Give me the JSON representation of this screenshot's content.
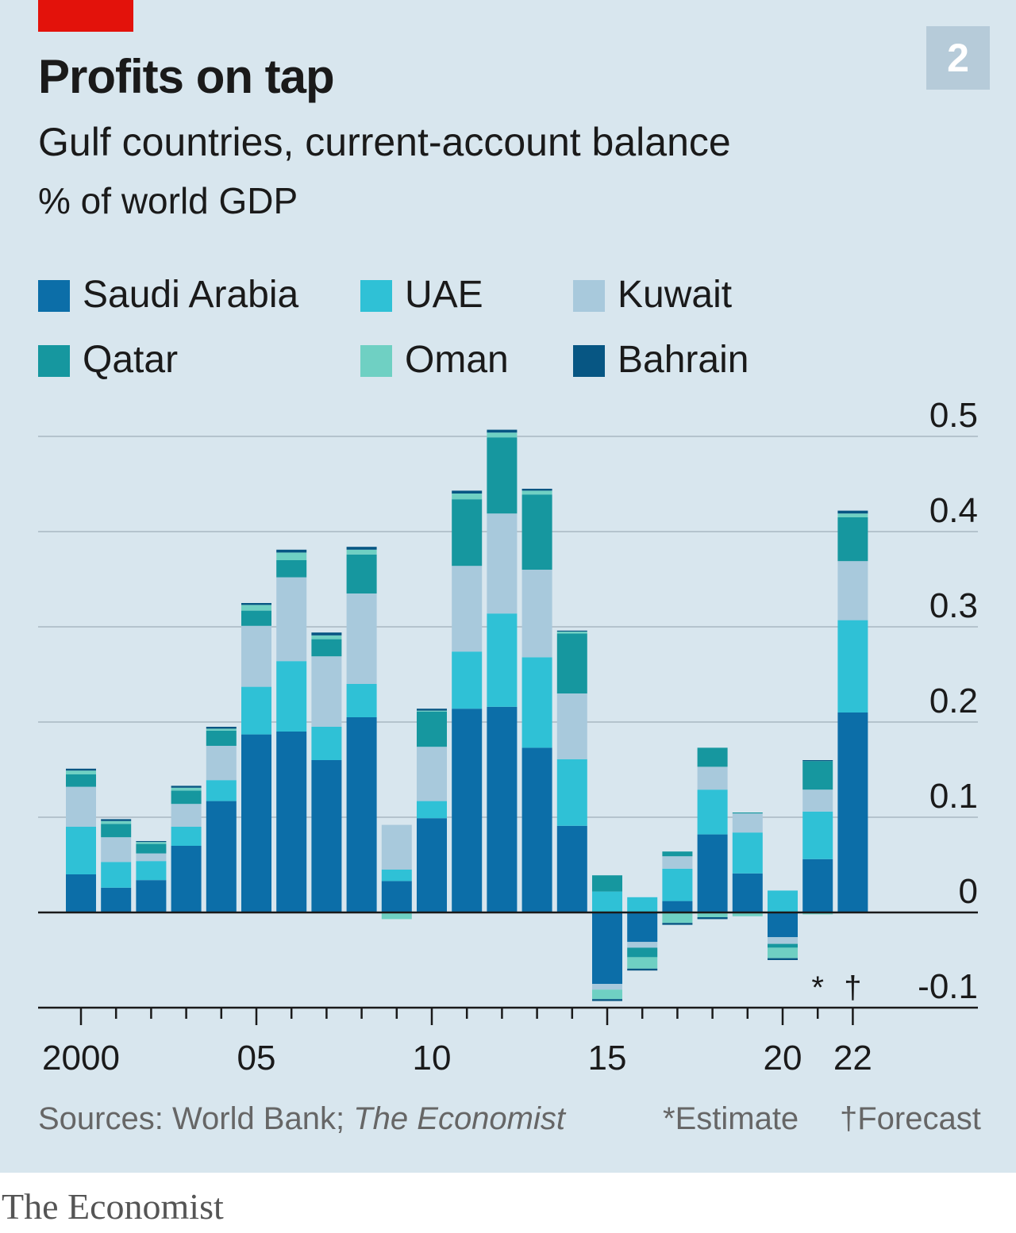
{
  "chart_number": "2",
  "title": "Profits on tap",
  "subtitle": "Gulf countries, current-account balance",
  "unit_label": "% of world GDP",
  "sources": {
    "prefix": "Sources: World Bank; ",
    "italic": "The Economist"
  },
  "notes": {
    "estimate": "*Estimate",
    "forecast": "†Forecast"
  },
  "publisher": "The Economist",
  "colors": {
    "background": "#d8e6ee",
    "accent_red": "#e3120b",
    "gridline": "#b4c3cd",
    "axis": "#1a1a1a"
  },
  "chart_data": {
    "type": "bar",
    "stacked": true,
    "x": [
      2000,
      2001,
      2002,
      2003,
      2004,
      2005,
      2006,
      2007,
      2008,
      2009,
      2010,
      2011,
      2012,
      2013,
      2014,
      2015,
      2016,
      2017,
      2018,
      2019,
      2020,
      2021,
      2022
    ],
    "xtick_values": [
      2000,
      2005,
      2010,
      2015,
      2020,
      2022
    ],
    "xtick_labels": [
      "2000",
      "05",
      "10",
      "15",
      "20",
      "22"
    ],
    "ylim": [
      -0.1,
      0.5
    ],
    "yticks": [
      0.5,
      0.4,
      0.3,
      0.2,
      0.1,
      0,
      -0.1
    ],
    "ytick_labels": [
      "0.5",
      "0.4",
      "0.3",
      "0.2",
      "0.1",
      "0",
      "-0.1"
    ],
    "grid": true,
    "legend_position": "top-left",
    "annotations": [
      {
        "x": 2021,
        "text": "*"
      },
      {
        "x": 2022,
        "text": "†"
      }
    ],
    "series": [
      {
        "name": "Saudi Arabia",
        "color": "#0c6ea8",
        "values": [
          0.04,
          0.026,
          0.034,
          0.07,
          0.117,
          0.187,
          0.19,
          0.16,
          0.205,
          0.033,
          0.099,
          0.214,
          0.216,
          0.173,
          0.091,
          -0.075,
          -0.031,
          0.012,
          0.082,
          0.041,
          -0.026,
          0.056,
          0.21
        ]
      },
      {
        "name": "UAE",
        "color": "#2fc1d6",
        "values": [
          0.05,
          0.027,
          0.02,
          0.02,
          0.022,
          0.05,
          0.074,
          0.035,
          0.035,
          0.012,
          0.018,
          0.06,
          0.098,
          0.095,
          0.07,
          0.022,
          0.016,
          0.034,
          0.047,
          0.043,
          0.023,
          0.05,
          0.097
        ]
      },
      {
        "name": "Kuwait",
        "color": "#a8c9dc",
        "values": [
          0.042,
          0.026,
          0.008,
          0.024,
          0.036,
          0.064,
          0.088,
          0.074,
          0.095,
          0.047,
          0.057,
          0.09,
          0.105,
          0.092,
          0.069,
          -0.006,
          -0.006,
          0.013,
          0.024,
          0.02,
          -0.007,
          0.023,
          0.062
        ]
      },
      {
        "name": "Qatar",
        "color": "#16979f",
        "values": [
          0.013,
          0.014,
          0.01,
          0.014,
          0.016,
          0.016,
          0.018,
          0.018,
          0.041,
          0.0,
          0.037,
          0.07,
          0.08,
          0.079,
          0.063,
          0.017,
          -0.01,
          0.005,
          0.02,
          0.001,
          -0.004,
          0.03,
          0.046
        ]
      },
      {
        "name": "Oman",
        "color": "#6fd0c3",
        "values": [
          0.004,
          0.003,
          0.002,
          0.003,
          0.002,
          0.006,
          0.008,
          0.004,
          0.005,
          -0.007,
          0.001,
          0.006,
          0.005,
          0.004,
          0.002,
          -0.01,
          -0.012,
          -0.011,
          -0.005,
          -0.004,
          -0.011,
          -0.002,
          0.004
        ]
      },
      {
        "name": "Bahrain",
        "color": "#075683",
        "values": [
          0.002,
          0.002,
          0.001,
          0.002,
          0.002,
          0.002,
          0.003,
          0.003,
          0.003,
          0.0,
          0.002,
          0.003,
          0.003,
          0.002,
          0.001,
          -0.002,
          -0.002,
          -0.002,
          -0.002,
          0.0,
          -0.002,
          0.001,
          0.003
        ]
      }
    ]
  }
}
